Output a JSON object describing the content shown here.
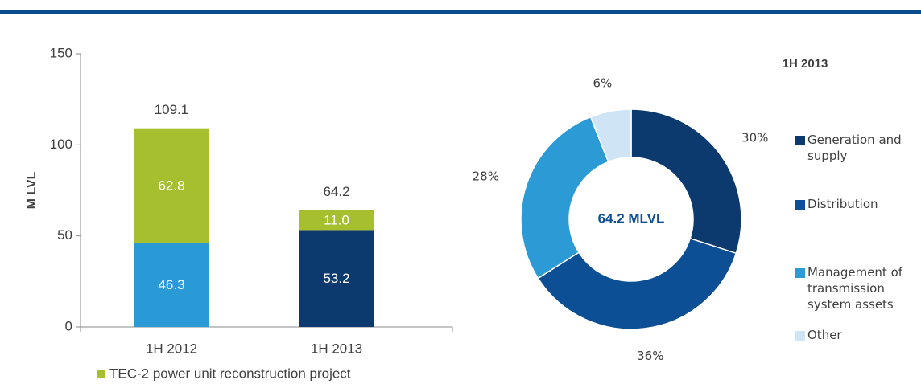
{
  "chart_data": [
    {
      "type": "bar",
      "categories": [
        "1H 2012",
        "1H 2013"
      ],
      "ylabel": "M LVL",
      "ylim": [
        0,
        150
      ],
      "yticks": [
        0,
        50,
        100,
        150
      ],
      "series": [
        {
          "colors": [
            "#2a9ad6",
            "#0c3a6e"
          ],
          "values": [
            46.3,
            53.2
          ]
        },
        {
          "name": "TEC-2 power unit reconstruction project",
          "color": "#a6bf2f",
          "values": [
            62.8,
            11
          ],
          "value_labels": [
            "62.8",
            "11.0"
          ]
        }
      ],
      "totals": [
        109.1,
        64.2
      ]
    },
    {
      "type": "pie",
      "title": "1H 2013",
      "center_label": "64.2 MLVL",
      "categories": [
        "Generation and supply",
        "Distribution",
        "Management of transmission system assets",
        "Other"
      ],
      "values": [
        30,
        36,
        28,
        6
      ],
      "value_labels": [
        "30%",
        "36%",
        "28%",
        "6%"
      ],
      "colors": [
        "#0c3a6e",
        "#0d4f94",
        "#2b9ad5",
        "#cfe4f4"
      ]
    }
  ]
}
